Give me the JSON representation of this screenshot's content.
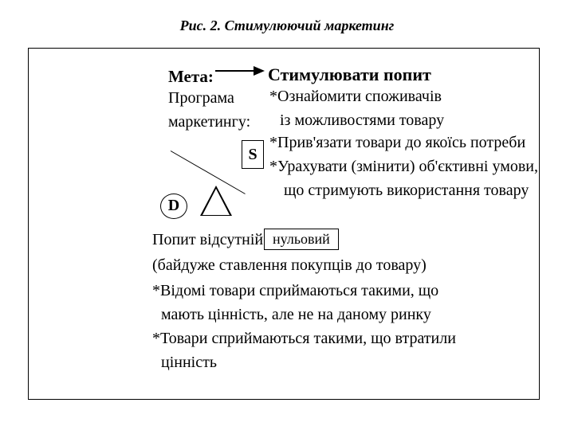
{
  "title": "Рис. 2. Стимулюючий маркетинг",
  "labels": {
    "meta": "Мета:",
    "program": "Програма",
    "marketing": "маркетингу:",
    "stim": "Стимулювати  попит",
    "d": "D",
    "s": "S",
    "zero": "нульовий"
  },
  "right": {
    "l1": "*Ознайомити споживачів",
    "l2": "із можливостями товару",
    "l3": "*Прив'язати товари до якоїсь потреби",
    "l4": "*Урахувати (змінити) об'єктивні умови,",
    "l5": "що стримують використання товару"
  },
  "bottom": {
    "l1": "Попит відсутній",
    "l2": "(байдуже ставлення покупців до товару)",
    "l3": "*Відомі товари сприймаються такими, що",
    "l4": "мають цінність, але не на даному ринку",
    "l5": "*Товари сприймаються такими, що втратили",
    "l6": "цінність"
  },
  "style": {
    "border_color": "#000000",
    "bg": "#ffffff",
    "title_fontsize": 18,
    "body_fontsize": 20
  }
}
